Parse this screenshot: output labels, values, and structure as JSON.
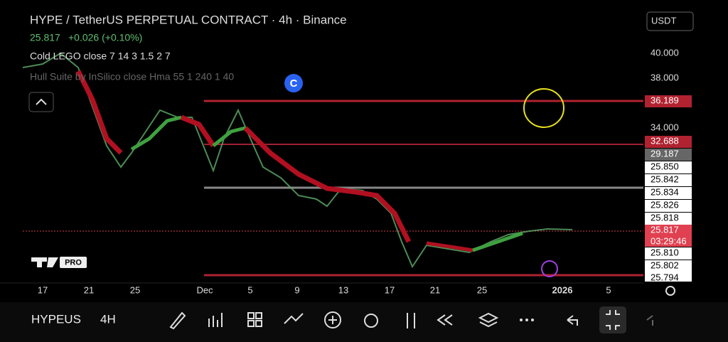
{
  "header": {
    "title": "HYPE / TetherUS PERPETUAL CONTRACT · 4h · Binance",
    "price": "25.817",
    "change": "+0.026 (+0.10%)",
    "indicators": [
      "Cold LEGO close 7 14 3 1.5 2 7",
      "Hull Suite by InSilico close Hma 55 1 240 1 40"
    ]
  },
  "currency": "USDT",
  "price_axis": {
    "labels": [
      "40.000",
      "38.000",
      "36.189",
      "34.000",
      "32.688",
      "29.187",
      "25.850",
      "25.842",
      "25.834",
      "25.826",
      "25.818",
      "25.817",
      "25.810",
      "25.802",
      "25.794"
    ],
    "countdown": "03:29:46"
  },
  "time_axis": {
    "labels": [
      "17",
      "21",
      "25",
      "Dec",
      "5",
      "9",
      "13",
      "17",
      "21",
      "25",
      "2026",
      "5"
    ]
  },
  "watermark": "PRO",
  "toolbar": {
    "symbol": "HYPEUS",
    "interval": "4H"
  }
}
